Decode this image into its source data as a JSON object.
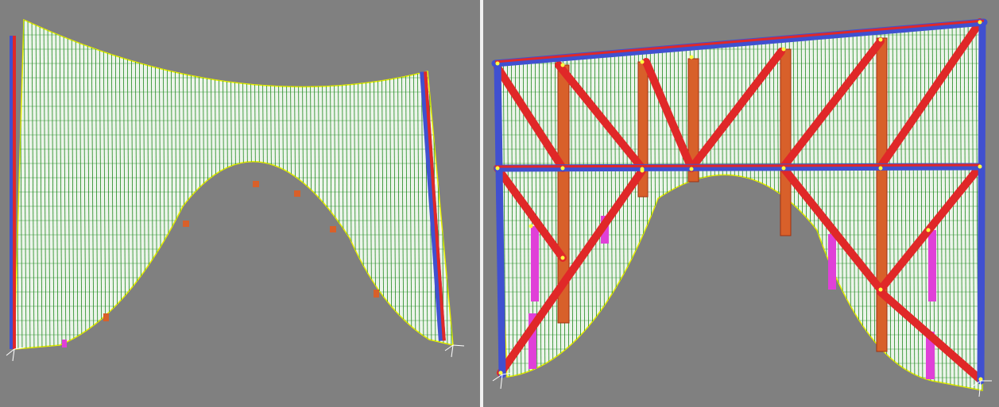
{
  "app": {
    "views": [
      {
        "id": "left",
        "description_name": "front-elevation-view"
      },
      {
        "id": "right",
        "description_name": "braced-frame-view"
      }
    ]
  },
  "colors": {
    "background": "#808080",
    "membrane_fill": "#ecf4ea",
    "mesh_green": "#1f8a1f",
    "edge_yellow": "#e8f000",
    "beam_blue": "#4050d0",
    "brace_red": "#e02828",
    "column_orange": "#d8602a",
    "pier_magenta": "#e040d8",
    "node_yellow": "#ffff40",
    "axis_white": "#ffffff"
  }
}
